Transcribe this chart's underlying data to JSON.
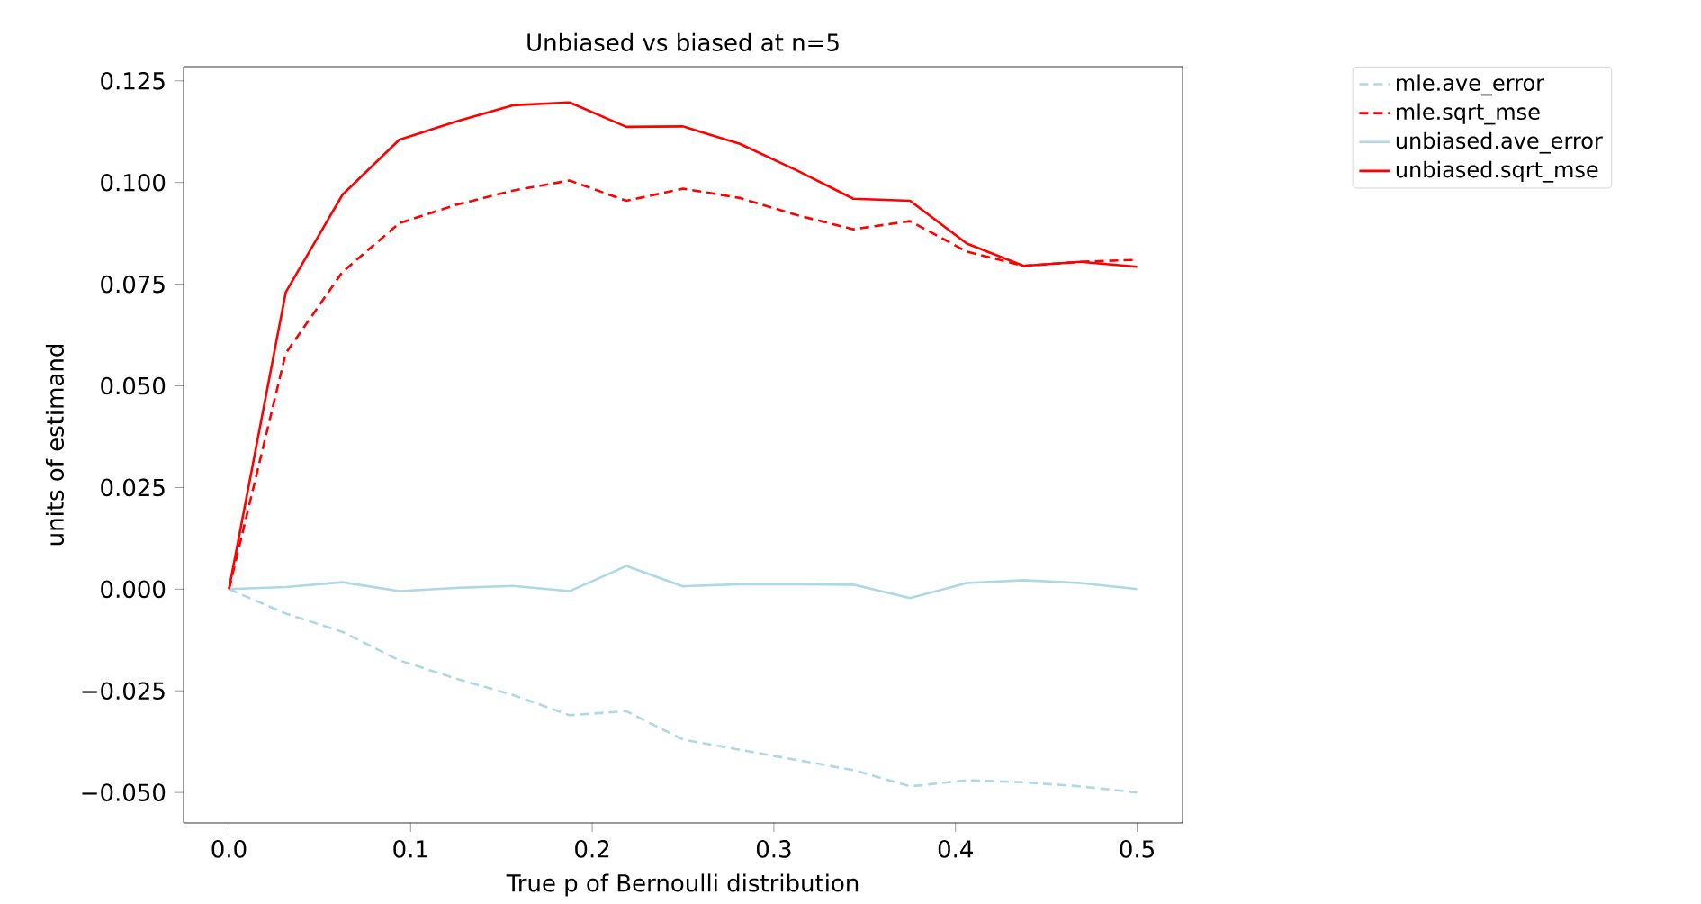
{
  "chart_data": {
    "type": "line",
    "title": "Unbiased vs biased at n=5",
    "xlabel": "True p of Bernoulli distribution",
    "ylabel": "units of estimand",
    "x": [
      0,
      0.03125,
      0.0625,
      0.09375,
      0.125,
      0.15625,
      0.1875,
      0.21875,
      0.25,
      0.28125,
      0.3125,
      0.34375,
      0.375,
      0.40625,
      0.4375,
      0.46875,
      0.5
    ],
    "series": [
      {
        "name": "mle.ave_error",
        "color": "#add8e6",
        "line_style": "dashed",
        "values": [
          0,
          -0.006,
          -0.0105,
          -0.0175,
          -0.022,
          -0.026,
          -0.031,
          -0.03,
          -0.037,
          -0.0395,
          -0.042,
          -0.0445,
          -0.0485,
          -0.047,
          -0.0475,
          -0.0485,
          -0.05
        ]
      },
      {
        "name": "mle.sqrt_mse",
        "color": "#ff0000",
        "line_style": "dashed",
        "values": [
          0,
          0.058,
          0.078,
          0.09,
          0.0945,
          0.098,
          0.1005,
          0.0955,
          0.0985,
          0.0962,
          0.092,
          0.0885,
          0.0905,
          0.083,
          0.0795,
          0.0805,
          0.081
        ]
      },
      {
        "name": "unbiased.ave_error",
        "color": "#add8e6",
        "line_style": "solid",
        "values": [
          0,
          0.0005,
          0.0017,
          -0.0005,
          0.0003,
          0.0008,
          -0.0005,
          0.0057,
          0.0007,
          0.0012,
          0.0012,
          0.0011,
          -0.0022,
          0.0015,
          0.0022,
          0.0015,
          0
        ]
      },
      {
        "name": "unbiased.sqrt_mse",
        "color": "#ff0000",
        "line_style": "solid",
        "values": [
          0,
          0.073,
          0.097,
          0.1105,
          0.115,
          0.119,
          0.1197,
          0.1137,
          0.1138,
          0.1095,
          0.103,
          0.096,
          0.0955,
          0.085,
          0.0795,
          0.0805,
          0.0793
        ]
      }
    ],
    "xlim": [
      -0.025,
      0.525
    ],
    "ylim": [
      -0.0575,
      0.1285
    ],
    "xticks": [
      {
        "value": 0,
        "label": "0.0"
      },
      {
        "value": 0.1,
        "label": "0.1"
      },
      {
        "value": 0.2,
        "label": "0.2"
      },
      {
        "value": 0.3,
        "label": "0.3"
      },
      {
        "value": 0.4,
        "label": "0.4"
      },
      {
        "value": 0.5,
        "label": "0.5"
      }
    ],
    "yticks": [
      {
        "value": -0.05,
        "label": "−0.050"
      },
      {
        "value": -0.025,
        "label": "−0.025"
      },
      {
        "value": 0,
        "label": "0.000"
      },
      {
        "value": 0.025,
        "label": "0.025"
      },
      {
        "value": 0.05,
        "label": "0.050"
      },
      {
        "value": 0.075,
        "label": "0.075"
      },
      {
        "value": 0.1,
        "label": "0.100"
      },
      {
        "value": 0.125,
        "label": "0.125"
      }
    ],
    "legend": "right",
    "grid": false,
    "marker": "none"
  }
}
